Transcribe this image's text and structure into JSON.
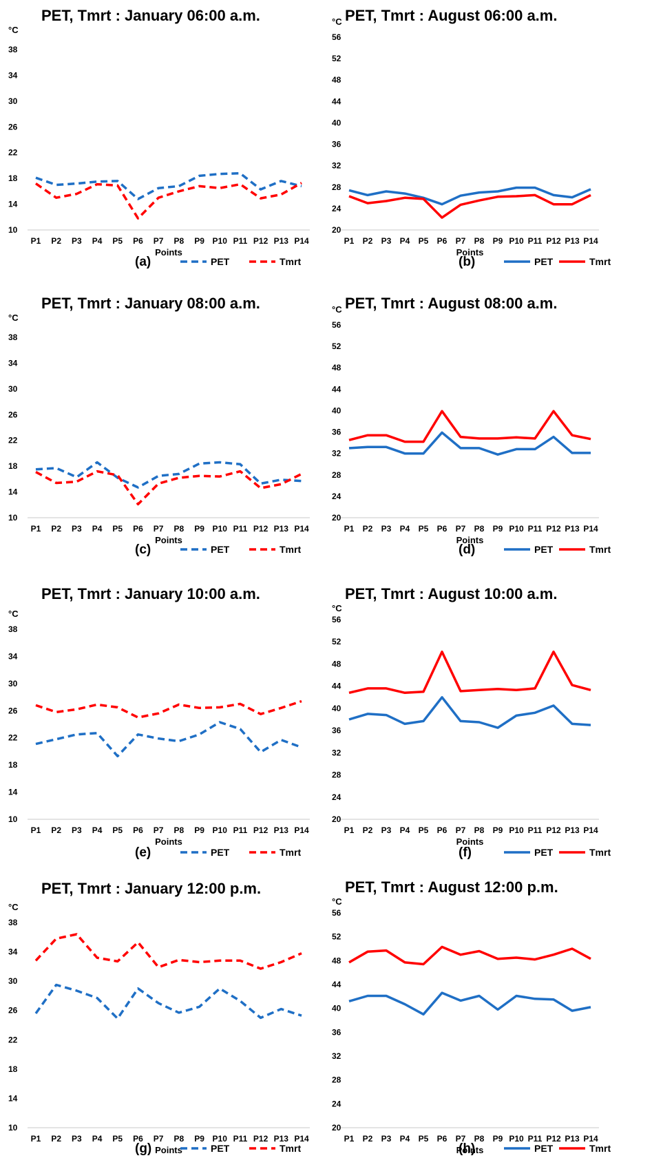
{
  "chart_data": [
    {
      "type": "line",
      "panel_label": "(a)",
      "title": "PET, Tmrt : January 06:00 a.m.",
      "unit_label": "°C",
      "xlabel": "Points",
      "categories": [
        "P1",
        "P2",
        "P3",
        "P4",
        "P5",
        "P6",
        "P7",
        "P8",
        "P9",
        "P10",
        "P11",
        "P12",
        "P13",
        "P14"
      ],
      "ylim": [
        10,
        38
      ],
      "yticks": [
        10,
        14,
        18,
        22,
        26,
        30,
        34,
        38
      ],
      "line_style": "dashed",
      "series": [
        {
          "name": "PET",
          "color": "#1f6fc5",
          "values": [
            18.1,
            17.0,
            17.2,
            17.5,
            17.6,
            14.8,
            16.5,
            16.8,
            18.4,
            18.7,
            18.8,
            16.3,
            17.6,
            16.8
          ]
        },
        {
          "name": "Tmrt",
          "color": "#ff0000",
          "values": [
            17.2,
            15.0,
            15.6,
            17.1,
            16.9,
            11.8,
            15.0,
            16.0,
            16.8,
            16.5,
            17.1,
            14.9,
            15.5,
            17.3
          ]
        }
      ]
    },
    {
      "type": "line",
      "panel_label": "(b)",
      "title": "PET, Tmrt : August 06:00 a.m.",
      "unit_label": "°C",
      "xlabel": "Points",
      "categories": [
        "P1",
        "P2",
        "P3",
        "P4",
        "P5",
        "P6",
        "P7",
        "P8",
        "P9",
        "P10",
        "P11",
        "P12",
        "P13",
        "P14"
      ],
      "ylim": [
        20,
        56
      ],
      "yticks": [
        20,
        24,
        28,
        32,
        36,
        40,
        44,
        48,
        52,
        56
      ],
      "line_style": "solid",
      "series": [
        {
          "name": "PET",
          "color": "#1f6fc5",
          "values": [
            27.4,
            26.5,
            27.2,
            26.8,
            26.0,
            24.8,
            26.4,
            27.0,
            27.2,
            27.9,
            27.9,
            26.5,
            26.1,
            27.6
          ]
        },
        {
          "name": "Tmrt",
          "color": "#ff0000",
          "values": [
            26.3,
            25.0,
            25.4,
            26.0,
            25.8,
            22.3,
            24.7,
            25.5,
            26.2,
            26.3,
            26.5,
            24.8,
            24.8,
            26.5
          ]
        }
      ]
    },
    {
      "type": "line",
      "panel_label": "(c)",
      "title": "PET, Tmrt : January 08:00 a.m.",
      "unit_label": "°C",
      "xlabel": "Points",
      "categories": [
        "P1",
        "P2",
        "P3",
        "P4",
        "P5",
        "P6",
        "P7",
        "P8",
        "P9",
        "P10",
        "P11",
        "P12",
        "P13",
        "P14"
      ],
      "ylim": [
        10,
        38
      ],
      "yticks": [
        10,
        14,
        18,
        22,
        26,
        30,
        34,
        38
      ],
      "line_style": "dashed",
      "series": [
        {
          "name": "PET",
          "color": "#1f6fc5",
          "values": [
            17.5,
            17.7,
            16.3,
            18.6,
            16.2,
            14.7,
            16.5,
            16.8,
            18.4,
            18.6,
            18.3,
            15.3,
            15.9,
            15.7
          ]
        },
        {
          "name": "Tmrt",
          "color": "#ff0000",
          "values": [
            17.1,
            15.4,
            15.6,
            17.2,
            16.6,
            12.1,
            15.3,
            16.2,
            16.5,
            16.4,
            17.2,
            14.6,
            15.2,
            16.8
          ]
        }
      ]
    },
    {
      "type": "line",
      "panel_label": "(d)",
      "title": "PET, Tmrt : August 08:00 a.m.",
      "unit_label": "°C",
      "xlabel": "Points",
      "categories": [
        "P1",
        "P2",
        "P3",
        "P4",
        "P5",
        "P6",
        "P7",
        "P8",
        "P9",
        "P10",
        "P11",
        "P12",
        "P13",
        "P14"
      ],
      "ylim": [
        20,
        56
      ],
      "yticks": [
        20,
        24,
        28,
        32,
        36,
        40,
        44,
        48,
        52,
        56
      ],
      "line_style": "solid",
      "series": [
        {
          "name": "PET",
          "color": "#1f6fc5",
          "values": [
            33.0,
            33.2,
            33.2,
            32.0,
            32.0,
            35.9,
            33.0,
            33.0,
            31.8,
            32.8,
            32.8,
            35.1,
            32.1,
            32.1
          ]
        },
        {
          "name": "Tmrt",
          "color": "#ff0000",
          "values": [
            34.5,
            35.4,
            35.4,
            34.2,
            34.2,
            39.9,
            35.1,
            34.8,
            34.8,
            35.0,
            34.8,
            39.9,
            35.4,
            34.7
          ]
        }
      ]
    },
    {
      "type": "line",
      "panel_label": "(e)",
      "title": "PET, Tmrt : January 10:00 a.m.",
      "unit_label": "°C",
      "xlabel": "Points",
      "categories": [
        "P1",
        "P2",
        "P3",
        "P4",
        "P5",
        "P6",
        "P7",
        "P8",
        "P9",
        "P10",
        "P11",
        "P12",
        "P13",
        "P14"
      ],
      "ylim": [
        10,
        38
      ],
      "yticks": [
        10,
        14,
        18,
        22,
        26,
        30,
        34,
        38
      ],
      "line_style": "dashed",
      "series": [
        {
          "name": "PET",
          "color": "#1f6fc5",
          "values": [
            21.1,
            21.8,
            22.5,
            22.7,
            19.3,
            22.5,
            21.9,
            21.5,
            22.5,
            24.3,
            23.3,
            19.9,
            21.7,
            20.6
          ]
        },
        {
          "name": "Tmrt",
          "color": "#ff0000",
          "values": [
            26.8,
            25.8,
            26.2,
            26.9,
            26.5,
            25.0,
            25.6,
            26.9,
            26.4,
            26.5,
            27.0,
            25.5,
            26.4,
            27.4
          ]
        }
      ]
    },
    {
      "type": "line",
      "panel_label": "(f)",
      "title": "PET, Tmrt : August 10:00 a.m.",
      "unit_label": "°C",
      "xlabel": "Points",
      "categories": [
        "P1",
        "P2",
        "P3",
        "P4",
        "P5",
        "P6",
        "P7",
        "P8",
        "P9",
        "P10",
        "P11",
        "P12",
        "P13",
        "P14"
      ],
      "ylim": [
        20,
        56
      ],
      "yticks": [
        20,
        24,
        28,
        32,
        36,
        40,
        44,
        48,
        52,
        56
      ],
      "line_style": "solid",
      "series": [
        {
          "name": "PET",
          "color": "#1f6fc5",
          "values": [
            38.0,
            39.0,
            38.8,
            37.2,
            37.7,
            42.0,
            37.7,
            37.5,
            36.5,
            38.7,
            39.2,
            40.5,
            37.2,
            37.0
          ]
        },
        {
          "name": "Tmrt",
          "color": "#ff0000",
          "values": [
            42.8,
            43.6,
            43.6,
            42.8,
            43.0,
            50.2,
            43.1,
            43.3,
            43.5,
            43.3,
            43.6,
            50.2,
            44.2,
            43.3
          ]
        }
      ]
    },
    {
      "type": "line",
      "panel_label": "(g)",
      "title": "PET, Tmrt : January 12:00 p.m.",
      "unit_label": "°C",
      "xlabel": "Points",
      "categories": [
        "P1",
        "P2",
        "P3",
        "P4",
        "P5",
        "P6",
        "P7",
        "P8",
        "P9",
        "P10",
        "P11",
        "P12",
        "P13",
        "P14"
      ],
      "ylim": [
        10,
        38
      ],
      "yticks": [
        10,
        14,
        18,
        22,
        26,
        30,
        34,
        38
      ],
      "line_style": "dashed",
      "series": [
        {
          "name": "PET",
          "color": "#1f6fc5",
          "values": [
            25.6,
            29.5,
            28.7,
            27.7,
            24.9,
            29.0,
            27.0,
            25.7,
            26.5,
            29.0,
            27.3,
            25.0,
            26.2,
            25.3
          ]
        },
        {
          "name": "Tmrt",
          "color": "#ff0000",
          "values": [
            32.8,
            35.8,
            36.4,
            33.2,
            32.7,
            35.3,
            31.9,
            32.9,
            32.6,
            32.8,
            32.8,
            31.7,
            32.6,
            33.8
          ]
        }
      ]
    },
    {
      "type": "line",
      "panel_label": "(h)",
      "title": "PET, Tmrt : August 12:00 p.m.",
      "unit_label": "°C",
      "xlabel": "Points",
      "categories": [
        "P1",
        "P2",
        "P3",
        "P4",
        "P5",
        "P6",
        "P7",
        "P8",
        "P9",
        "P10",
        "P11",
        "P12",
        "P13",
        "P14"
      ],
      "ylim": [
        20,
        56
      ],
      "yticks": [
        20,
        24,
        28,
        32,
        36,
        40,
        44,
        48,
        52,
        56
      ],
      "line_style": "solid",
      "series": [
        {
          "name": "PET",
          "color": "#1f6fc5",
          "values": [
            41.2,
            42.1,
            42.1,
            40.7,
            39.0,
            42.6,
            41.3,
            42.1,
            39.8,
            42.1,
            41.6,
            41.5,
            39.6,
            40.2
          ]
        },
        {
          "name": "Tmrt",
          "color": "#ff0000",
          "values": [
            47.7,
            49.5,
            49.7,
            47.7,
            47.4,
            50.3,
            49.0,
            49.6,
            48.3,
            48.5,
            48.2,
            49.0,
            50.0,
            48.3
          ]
        }
      ]
    }
  ]
}
